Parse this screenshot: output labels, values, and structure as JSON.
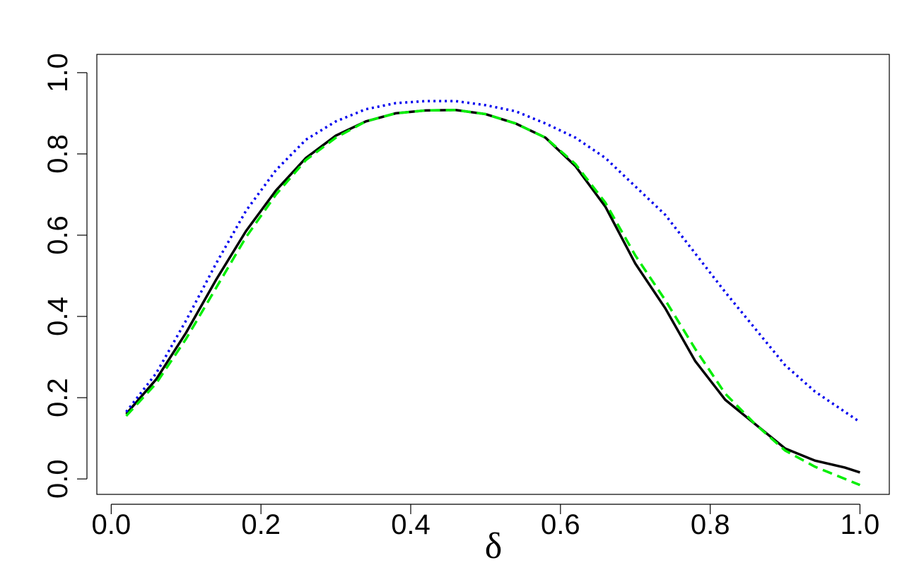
{
  "chart_data": {
    "type": "line",
    "x_label": "δ",
    "x": [
      0.02,
      0.06,
      0.1,
      0.14,
      0.18,
      0.22,
      0.26,
      0.3,
      0.34,
      0.38,
      0.42,
      0.46,
      0.5,
      0.54,
      0.58,
      0.62,
      0.66,
      0.7,
      0.74,
      0.78,
      0.82,
      0.86,
      0.9,
      0.94,
      0.98,
      1.0
    ],
    "series": [
      {
        "color": "#000000",
        "linestyle": "solid",
        "values": [
          0.16,
          0.245,
          0.36,
          0.49,
          0.61,
          0.71,
          0.79,
          0.845,
          0.88,
          0.9,
          0.907,
          0.908,
          0.898,
          0.875,
          0.84,
          0.77,
          0.67,
          0.53,
          0.42,
          0.29,
          0.195,
          0.135,
          0.075,
          0.045,
          0.028,
          0.016
        ]
      },
      {
        "color": "#00ee00",
        "linestyle": "dashed",
        "values": [
          0.155,
          0.235,
          0.345,
          0.47,
          0.595,
          0.7,
          0.785,
          0.84,
          0.88,
          0.9,
          0.907,
          0.908,
          0.898,
          0.875,
          0.84,
          0.775,
          0.68,
          0.55,
          0.44,
          0.32,
          0.21,
          0.135,
          0.07,
          0.03,
          0.0,
          -0.015
        ]
      },
      {
        "color": "#0000ee",
        "linestyle": "dotted",
        "values": [
          0.165,
          0.26,
          0.39,
          0.53,
          0.66,
          0.76,
          0.835,
          0.88,
          0.91,
          0.925,
          0.93,
          0.93,
          0.92,
          0.905,
          0.875,
          0.84,
          0.79,
          0.72,
          0.65,
          0.555,
          0.46,
          0.37,
          0.28,
          0.215,
          0.165,
          0.14
        ]
      }
    ],
    "xlim": [
      -0.0192,
      1.0392
    ],
    "ylim": [
      -0.038,
      1.045
    ],
    "xticks": [
      {
        "value": 0,
        "label": "0.0"
      },
      {
        "value": 0.2,
        "label": "0.2"
      },
      {
        "value": 0.4,
        "label": "0.4"
      },
      {
        "value": 0.6,
        "label": "0.6"
      },
      {
        "value": 0.8,
        "label": "0.8"
      },
      {
        "value": 1,
        "label": "1.0"
      }
    ],
    "yticks": [
      {
        "value": 0,
        "label": "0.0"
      },
      {
        "value": 0.2,
        "label": "0.2"
      },
      {
        "value": 0.4,
        "label": "0.4"
      },
      {
        "value": 0.6,
        "label": "0.6"
      },
      {
        "value": 0.8,
        "label": "0.8"
      },
      {
        "value": 1,
        "label": "1.0"
      }
    ],
    "grid": false
  }
}
